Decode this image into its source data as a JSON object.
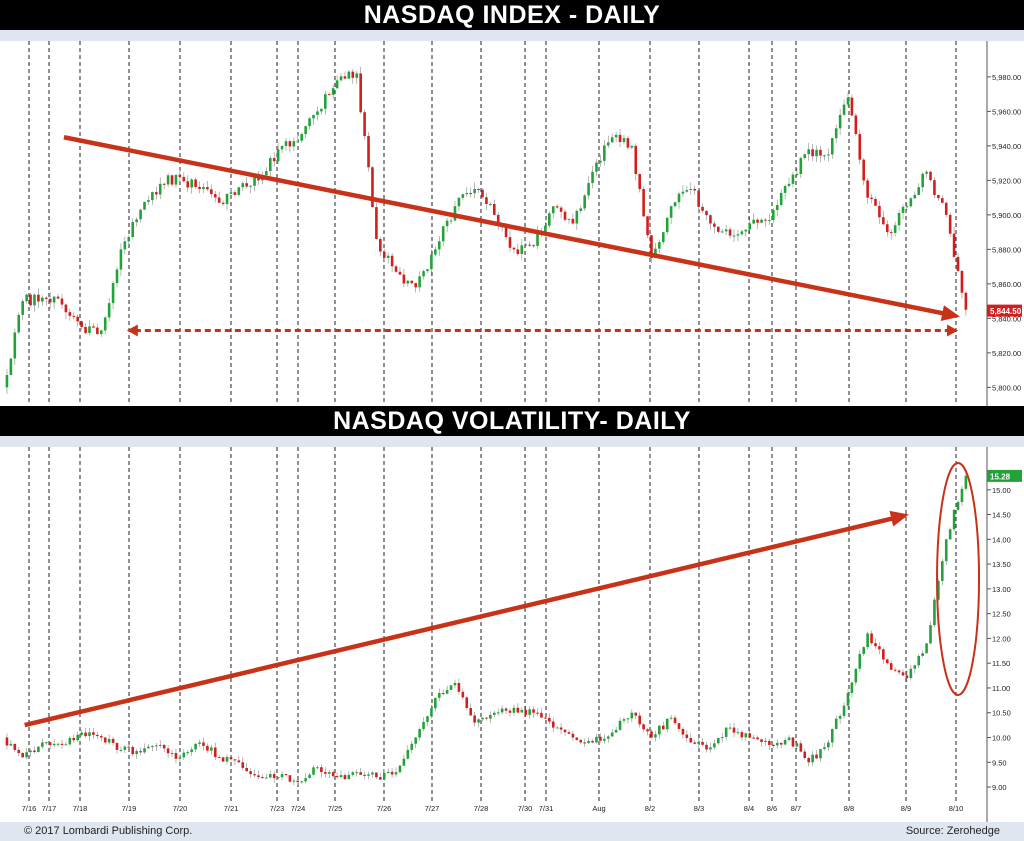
{
  "top_title": "NASDAQ INDEX - DAILY",
  "bottom_title": "NASDAQ VOLATILITY- DAILY",
  "footer": {
    "copyright": "© 2017 Lombardi Publishing Corp.",
    "source": "Source: Zerohedge"
  },
  "colors": {
    "up": "#22a33a",
    "down": "#d41e1e",
    "trend": "#c83218",
    "band": "#dfe6ef",
    "title_bg": "#000000"
  },
  "chart_data": [
    {
      "type": "line",
      "chart_style": "intraday candlestick",
      "title": "NASDAQ INDEX - DAILY",
      "ylim": [
        5795,
        5995
      ],
      "y_ticks": [
        "5,800.00",
        "5,820.00",
        "5,840.00",
        "5,860.00",
        "5,880.00",
        "5,900.00",
        "5,920.00",
        "5,940.00",
        "5,960.00",
        "5,980.00"
      ],
      "y_tick_values": [
        5800,
        5820,
        5840,
        5860,
        5880,
        5900,
        5920,
        5940,
        5960,
        5980
      ],
      "last_value_label": "5,844.50",
      "last_value": 5844.5,
      "grid": "vertical dashed session separators",
      "series": [
        {
          "x": [
            0,
            1,
            2,
            3,
            4,
            5,
            6,
            7,
            8,
            9,
            10,
            11,
            12,
            13,
            14,
            15,
            16,
            17,
            18,
            19,
            20,
            21,
            22,
            23,
            24,
            25,
            26,
            27,
            28,
            29,
            30,
            31,
            32,
            33,
            34,
            35,
            36,
            37,
            38,
            39,
            40,
            41,
            42,
            43,
            44,
            45,
            46,
            47,
            48,
            49
          ],
          "values": [
            5800,
            5850,
            5852,
            5848,
            5835,
            5833,
            5880,
            5903,
            5918,
            5922,
            5915,
            5907,
            5916,
            5920,
            5938,
            5943,
            5960,
            5978,
            5982,
            5886,
            5867,
            5858,
            5880,
            5905,
            5915,
            5900,
            5880,
            5882,
            5905,
            5895,
            5925,
            5945,
            5940,
            5875,
            5905,
            5915,
            5895,
            5888,
            5895,
            5897,
            5918,
            5938,
            5935,
            5968,
            5910,
            5890,
            5905,
            5925,
            5900,
            5845
          ]
        }
      ],
      "annotations": [
        {
          "type": "trend-arrow",
          "from": [
            3.0,
            5945
          ],
          "to": [
            48.6,
            5841
          ]
        },
        {
          "type": "dashed-double-arrow",
          "from": [
            6.2,
            5833
          ],
          "to": [
            48.5,
            5833
          ]
        }
      ]
    },
    {
      "type": "line",
      "chart_style": "intraday candlestick",
      "title": "NASDAQ VOLATILITY- DAILY",
      "ylim": [
        8.9,
        15.5
      ],
      "y_ticks": [
        "9.00",
        "9.50",
        "10.00",
        "10.50",
        "11.00",
        "11.50",
        "12.00",
        "12.50",
        "13.00",
        "13.50",
        "14.00",
        "14.50",
        "15.00"
      ],
      "y_tick_values": [
        9.0,
        9.5,
        10.0,
        10.5,
        11.0,
        11.5,
        12.0,
        12.5,
        13.0,
        13.5,
        14.0,
        14.5,
        15.0
      ],
      "last_value_label": "15.28",
      "last_value": 15.28,
      "x_tick_labels": [
        "7/16",
        "7/17",
        "7/18",
        "7/19",
        "7/20",
        "7/21",
        "7/23",
        "7/24",
        "7/25",
        "7/26",
        "7/27",
        "7/28",
        "7/30",
        "7/31",
        "Aug",
        "8/2",
        "8/3",
        "8/4",
        "8/6",
        "8/7",
        "8/8",
        "8/9",
        "8/10"
      ],
      "grid": "vertical dashed session separators",
      "series": [
        {
          "x": [
            0,
            1,
            2,
            3,
            4,
            5,
            6,
            7,
            8,
            9,
            10,
            11,
            12,
            13,
            14,
            15,
            16,
            17,
            18,
            19,
            20,
            21,
            22,
            23,
            24,
            25,
            26,
            27,
            28,
            29,
            30,
            31,
            32,
            33,
            34,
            35,
            36,
            37,
            38,
            39,
            40,
            41,
            42,
            43,
            44,
            45,
            46,
            47,
            48,
            49
          ],
          "values": [
            10.0,
            9.6,
            9.9,
            9.85,
            10.1,
            10.0,
            9.75,
            9.7,
            9.85,
            9.6,
            9.9,
            9.6,
            9.5,
            9.2,
            9.2,
            9.1,
            9.4,
            9.2,
            9.3,
            9.2,
            9.3,
            10.0,
            10.8,
            11.1,
            10.3,
            10.5,
            10.6,
            10.5,
            10.2,
            10.0,
            9.9,
            10.1,
            10.5,
            10.0,
            10.4,
            9.9,
            9.8,
            10.2,
            10.0,
            9.85,
            10.0,
            9.5,
            9.9,
            10.9,
            12.1,
            11.5,
            11.2,
            11.9,
            14.0,
            15.28
          ]
        }
      ],
      "annotations": [
        {
          "type": "trend-arrow",
          "from": [
            1.0,
            10.25
          ],
          "to": [
            46.0,
            14.5
          ]
        },
        {
          "type": "ellipse-highlight",
          "center": [
            48.5,
            13.2
          ]
        }
      ]
    }
  ]
}
